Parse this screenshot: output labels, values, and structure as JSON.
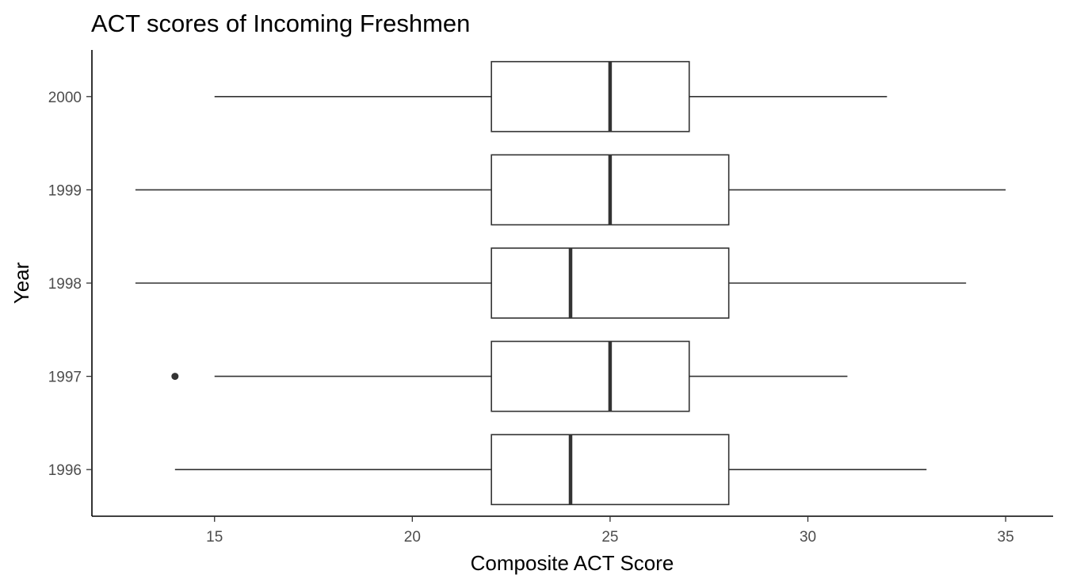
{
  "chart_data": {
    "type": "boxplot",
    "orientation": "horizontal",
    "title": "ACT scores of Incoming Freshmen",
    "xlabel": "Composite ACT Score",
    "ylabel": "Year",
    "xlim": [
      11.9,
      36.2
    ],
    "x_ticks": [
      15,
      20,
      25,
      30,
      35
    ],
    "x_tick_labels": [
      "15",
      "20",
      "25",
      "30",
      "35"
    ],
    "grid": false,
    "categories": [
      "1996",
      "1997",
      "1998",
      "1999",
      "2000"
    ],
    "boxes": [
      {
        "year": "1996",
        "whisker_low": 14,
        "q1": 22,
        "median": 24,
        "q3": 28,
        "whisker_high": 33,
        "outliers": []
      },
      {
        "year": "1997",
        "whisker_low": 15,
        "q1": 22,
        "median": 25,
        "q3": 27,
        "whisker_high": 31,
        "outliers": [
          14
        ]
      },
      {
        "year": "1998",
        "whisker_low": 13,
        "q1": 22,
        "median": 24,
        "q3": 28,
        "whisker_high": 34,
        "outliers": []
      },
      {
        "year": "1999",
        "whisker_low": 13,
        "q1": 22,
        "median": 25,
        "q3": 28,
        "whisker_high": 35,
        "outliers": []
      },
      {
        "year": "2000",
        "whisker_low": 15,
        "q1": 22,
        "median": 25,
        "q3": 27,
        "whisker_high": 32,
        "outliers": []
      }
    ],
    "colors": {
      "box_fill": "#ffffff",
      "box_stroke": "#333333",
      "text": "#000000",
      "tick_text": "#4d4d4d"
    }
  }
}
